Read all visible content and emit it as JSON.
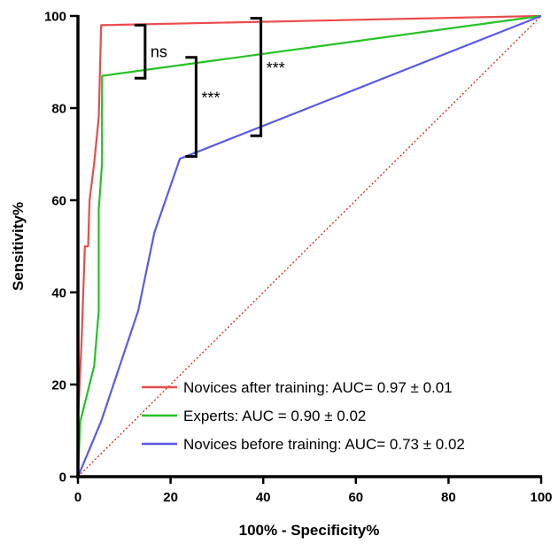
{
  "chart_data": {
    "type": "line",
    "title": "",
    "xlabel": "100% - Specificity%",
    "ylabel": "Sensitivity%",
    "xlim": [
      0,
      100
    ],
    "ylim": [
      0,
      100
    ],
    "x_ticks": [
      "0",
      "20",
      "40",
      "60",
      "80",
      "100"
    ],
    "y_ticks": [
      "0",
      "20",
      "40",
      "60",
      "80",
      "100"
    ],
    "grid": false,
    "legend_position": "bottom-right",
    "series": [
      {
        "name": "Novices after training: AUC= 0.97 ± 0.01",
        "color": "#ea4c4c",
        "points": [
          [
            0,
            0
          ],
          [
            0,
            12
          ],
          [
            0.8,
            30
          ],
          [
            1.5,
            50
          ],
          [
            2.2,
            50
          ],
          [
            2.5,
            60
          ],
          [
            3.5,
            68
          ],
          [
            4.5,
            78
          ],
          [
            5,
            98
          ],
          [
            100,
            100
          ]
        ]
      },
      {
        "name": "Experts: AUC = 0.90 ± 0.02",
        "color": "#25c225",
        "points": [
          [
            0,
            0
          ],
          [
            0.5,
            12
          ],
          [
            2,
            18
          ],
          [
            3.5,
            24
          ],
          [
            4.5,
            36
          ],
          [
            4.5,
            58
          ],
          [
            5.2,
            68
          ],
          [
            5.2,
            87
          ],
          [
            100,
            100
          ]
        ]
      },
      {
        "name": "Novices before training: AUC= 0.73 ± 0.02",
        "color": "#5a5ae6",
        "points": [
          [
            0,
            0
          ],
          [
            5,
            12
          ],
          [
            9,
            24
          ],
          [
            13,
            36
          ],
          [
            16.5,
            53
          ],
          [
            22,
            69
          ],
          [
            100,
            100
          ]
        ]
      },
      {
        "name": "",
        "color": "#d42020",
        "style": "dotted",
        "points": [
          [
            0,
            0
          ],
          [
            100,
            100
          ]
        ]
      }
    ],
    "annotations": [
      {
        "text": "ns",
        "bracket": {
          "x": 14.5,
          "y_low": 86.5,
          "y_high": 98
        }
      },
      {
        "text": "***",
        "bracket": {
          "x": 25.5,
          "y_low": 69.5,
          "y_high": 91
        }
      },
      {
        "text": "***",
        "bracket": {
          "x": 39.5,
          "y_low": 74,
          "y_high": 99.5
        }
      }
    ]
  }
}
